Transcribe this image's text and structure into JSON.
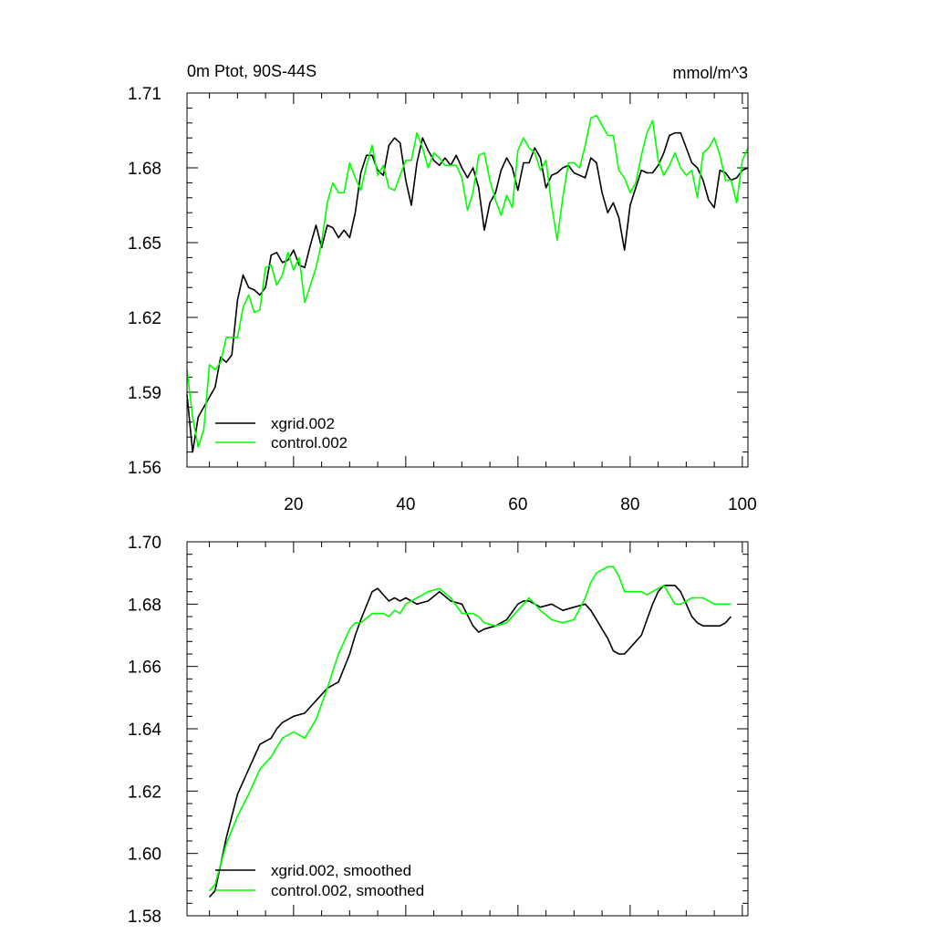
{
  "chart_data": [
    {
      "type": "line",
      "title": "0m Ptot, 90S-44S",
      "units": "mmol/m^3",
      "xlim": [
        1,
        101
      ],
      "ylim": [
        1.56,
        1.71
      ],
      "yticks": [
        "1.56",
        "1.59",
        "1.62",
        "1.65",
        "1.68",
        "1.71"
      ],
      "xticks": [
        "20",
        "40",
        "60",
        "80",
        "100"
      ],
      "legend_position": "bottom-left",
      "series": [
        {
          "name": "xgrid.002",
          "color": "#000000",
          "x": [
            1,
            2,
            3,
            4,
            5,
            6,
            7,
            8,
            9,
            10,
            11,
            12,
            13,
            14,
            15,
            16,
            17,
            18,
            19,
            20,
            21,
            22,
            23,
            24,
            25,
            26,
            27,
            28,
            29,
            30,
            31,
            32,
            33,
            34,
            35,
            36,
            37,
            38,
            39,
            40,
            41,
            42,
            43,
            44,
            45,
            46,
            47,
            48,
            49,
            50,
            51,
            52,
            53,
            54,
            55,
            56,
            57,
            58,
            59,
            60,
            61,
            62,
            63,
            64,
            65,
            66,
            67,
            68,
            69,
            70,
            71,
            72,
            73,
            74,
            75,
            76,
            77,
            78,
            79,
            80,
            81,
            82,
            83,
            84,
            85,
            86,
            87,
            88,
            89,
            90,
            91,
            92,
            93,
            94,
            95,
            96,
            97,
            98,
            99,
            100,
            101
          ],
          "values": [
            1.589,
            1.566,
            1.58,
            1.584,
            1.588,
            1.592,
            1.604,
            1.602,
            1.605,
            1.627,
            1.637,
            1.632,
            1.631,
            1.629,
            1.632,
            1.645,
            1.646,
            1.642,
            1.643,
            1.647,
            1.641,
            1.64,
            1.649,
            1.657,
            1.648,
            1.657,
            1.656,
            1.652,
            1.655,
            1.652,
            1.662,
            1.678,
            1.685,
            1.685,
            1.679,
            1.677,
            1.689,
            1.692,
            1.69,
            1.675,
            1.665,
            1.682,
            1.692,
            1.687,
            1.683,
            1.681,
            1.684,
            1.681,
            1.685,
            1.68,
            1.676,
            1.68,
            1.672,
            1.655,
            1.666,
            1.67,
            1.679,
            1.684,
            1.68,
            1.671,
            1.682,
            1.682,
            1.688,
            1.684,
            1.672,
            1.677,
            1.678,
            1.68,
            1.681,
            1.678,
            1.677,
            1.676,
            1.684,
            1.682,
            1.67,
            1.662,
            1.666,
            1.66,
            1.647,
            1.665,
            1.672,
            1.679,
            1.678,
            1.678,
            1.681,
            1.686,
            1.693,
            1.694,
            1.694,
            1.688,
            1.682,
            1.68,
            1.675,
            1.667,
            1.664,
            1.679,
            1.678,
            1.675,
            1.676,
            1.679,
            1.68
          ]
        },
        {
          "name": "control.002",
          "color": "#00ff00",
          "x": [
            1,
            2,
            3,
            4,
            5,
            6,
            7,
            8,
            9,
            10,
            11,
            12,
            13,
            14,
            15,
            16,
            17,
            18,
            19,
            20,
            21,
            22,
            23,
            24,
            25,
            26,
            27,
            28,
            29,
            30,
            31,
            32,
            33,
            34,
            35,
            36,
            37,
            38,
            39,
            40,
            41,
            42,
            43,
            44,
            45,
            46,
            47,
            48,
            49,
            50,
            51,
            52,
            53,
            54,
            55,
            56,
            57,
            58,
            59,
            60,
            61,
            62,
            63,
            64,
            65,
            66,
            67,
            68,
            69,
            70,
            71,
            72,
            73,
            74,
            75,
            76,
            77,
            78,
            79,
            80,
            81,
            82,
            83,
            84,
            85,
            86,
            87,
            88,
            89,
            90,
            91,
            92,
            93,
            94,
            95,
            96,
            97,
            98,
            99,
            100,
            101
          ],
          "values": [
            1.599,
            1.58,
            1.568,
            1.575,
            1.601,
            1.599,
            1.602,
            1.612,
            1.612,
            1.612,
            1.624,
            1.629,
            1.622,
            1.623,
            1.64,
            1.641,
            1.633,
            1.637,
            1.646,
            1.639,
            1.644,
            1.626,
            1.633,
            1.64,
            1.65,
            1.666,
            1.674,
            1.67,
            1.67,
            1.682,
            1.676,
            1.671,
            1.681,
            1.689,
            1.677,
            1.681,
            1.672,
            1.671,
            1.677,
            1.683,
            1.683,
            1.694,
            1.688,
            1.68,
            1.686,
            1.684,
            1.681,
            1.681,
            1.681,
            1.676,
            1.663,
            1.67,
            1.685,
            1.686,
            1.675,
            1.667,
            1.661,
            1.669,
            1.664,
            1.687,
            1.692,
            1.688,
            1.686,
            1.679,
            1.683,
            1.665,
            1.651,
            1.668,
            1.682,
            1.682,
            1.68,
            1.689,
            1.7,
            1.701,
            1.697,
            1.693,
            1.693,
            1.679,
            1.676,
            1.67,
            1.674,
            1.685,
            1.694,
            1.699,
            1.683,
            1.677,
            1.681,
            1.686,
            1.68,
            1.677,
            1.679,
            1.668,
            1.686,
            1.688,
            1.692,
            1.685,
            1.675,
            1.675,
            1.666,
            1.683,
            1.688
          ]
        }
      ]
    },
    {
      "type": "line",
      "xlim": [
        1,
        101
      ],
      "ylim": [
        1.58,
        1.7
      ],
      "yticks": [
        "1.58",
        "1.60",
        "1.62",
        "1.64",
        "1.66",
        "1.68",
        "1.70"
      ],
      "legend_position": "bottom-left",
      "series": [
        {
          "name": "xgrid.002, smoothed",
          "color": "#000000",
          "x": [
            5,
            6,
            8,
            10,
            12,
            14,
            15,
            16,
            17,
            18,
            20,
            22,
            24,
            26,
            28,
            30,
            31,
            32,
            34,
            35,
            36,
            37,
            38,
            39,
            40,
            42,
            44,
            46,
            48,
            50,
            52,
            53,
            54,
            56,
            58,
            60,
            61,
            62,
            64,
            66,
            68,
            70,
            72,
            73,
            74,
            75,
            76,
            77,
            78,
            79,
            80,
            82,
            83,
            84,
            85,
            86,
            87,
            88,
            89,
            90,
            91,
            92,
            93,
            94,
            95,
            96,
            97,
            98
          ],
          "values": [
            1.586,
            1.588,
            1.605,
            1.619,
            1.627,
            1.635,
            1.636,
            1.637,
            1.64,
            1.642,
            1.644,
            1.645,
            1.649,
            1.653,
            1.655,
            1.664,
            1.67,
            1.675,
            1.684,
            1.685,
            1.683,
            1.681,
            1.682,
            1.681,
            1.682,
            1.68,
            1.681,
            1.684,
            1.681,
            1.68,
            1.673,
            1.671,
            1.672,
            1.673,
            1.675,
            1.68,
            1.681,
            1.681,
            1.679,
            1.68,
            1.678,
            1.679,
            1.68,
            1.678,
            1.675,
            1.672,
            1.669,
            1.665,
            1.664,
            1.664,
            1.666,
            1.67,
            1.675,
            1.68,
            1.684,
            1.686,
            1.686,
            1.686,
            1.684,
            1.68,
            1.676,
            1.674,
            1.673,
            1.673,
            1.673,
            1.673,
            1.674,
            1.676
          ]
        },
        {
          "name": "control.002, smoothed",
          "color": "#00ff00",
          "x": [
            5,
            6,
            8,
            10,
            12,
            14,
            15,
            16,
            17,
            18,
            20,
            22,
            24,
            26,
            28,
            30,
            31,
            32,
            34,
            35,
            36,
            37,
            38,
            39,
            40,
            42,
            44,
            46,
            48,
            50,
            52,
            53,
            54,
            56,
            58,
            60,
            61,
            62,
            64,
            66,
            68,
            70,
            72,
            73,
            74,
            75,
            76,
            77,
            78,
            79,
            80,
            82,
            83,
            84,
            85,
            86,
            87,
            88,
            89,
            90,
            91,
            92,
            93,
            94,
            95,
            96,
            97,
            98
          ],
          "values": [
            1.588,
            1.59,
            1.603,
            1.612,
            1.619,
            1.627,
            1.629,
            1.631,
            1.634,
            1.637,
            1.639,
            1.637,
            1.643,
            1.653,
            1.664,
            1.672,
            1.674,
            1.674,
            1.677,
            1.677,
            1.677,
            1.676,
            1.678,
            1.677,
            1.68,
            1.682,
            1.684,
            1.685,
            1.682,
            1.677,
            1.677,
            1.676,
            1.674,
            1.673,
            1.674,
            1.678,
            1.68,
            1.682,
            1.678,
            1.675,
            1.674,
            1.675,
            1.682,
            1.687,
            1.69,
            1.691,
            1.692,
            1.692,
            1.689,
            1.684,
            1.684,
            1.684,
            1.683,
            1.684,
            1.685,
            1.686,
            1.683,
            1.68,
            1.68,
            1.681,
            1.682,
            1.682,
            1.682,
            1.681,
            1.68,
            1.68,
            1.68,
            1.68
          ]
        }
      ]
    }
  ]
}
